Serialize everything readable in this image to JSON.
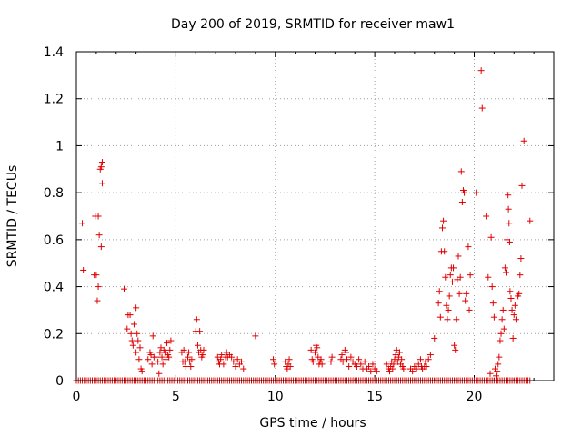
{
  "chart_data": {
    "type": "scatter",
    "title": "Day 200 of 2019, SRMTID for receiver maw1",
    "xlabel": "GPS time / hours",
    "ylabel": "SRMTID / TECUs",
    "xlim": [
      0,
      24
    ],
    "ylim": [
      0,
      1.4
    ],
    "grid": true,
    "marker": "+",
    "color": "#e00000",
    "xticks": [
      0,
      5,
      10,
      15,
      20
    ],
    "xtick_labels": [
      "0",
      "5",
      "10",
      "15",
      "20"
    ],
    "yticks": [
      0,
      0.2,
      0.4,
      0.6,
      0.8,
      1.0,
      1.2,
      1.4
    ],
    "ytick_labels": [
      "0",
      "0.2",
      "0.4",
      "0.6",
      "0.8",
      "1",
      "1.2",
      "1.4"
    ],
    "baseline_x": [
      0.0,
      0.1,
      0.2,
      0.3,
      0.4,
      0.5,
      0.6,
      0.7,
      0.8,
      0.9,
      1.0,
      1.1,
      1.2,
      1.3,
      1.4,
      1.5,
      1.6,
      1.7,
      1.8,
      1.9,
      2.0,
      2.1,
      2.2,
      2.3,
      2.4,
      2.5,
      2.6,
      2.7,
      2.8,
      2.9,
      3.0,
      3.1,
      3.2,
      3.3,
      3.4,
      3.5,
      3.6,
      3.7,
      3.8,
      3.9,
      4.0,
      4.1,
      4.2,
      4.3,
      4.4,
      4.5,
      4.6,
      4.7,
      4.8,
      4.9,
      5.0,
      5.1,
      5.2,
      5.3,
      5.4,
      5.5,
      5.6,
      5.7,
      5.8,
      5.9,
      6.0,
      6.1,
      6.2,
      6.3,
      6.4,
      6.5,
      6.6,
      6.7,
      6.8,
      6.9,
      7.0,
      7.1,
      7.2,
      7.3,
      7.4,
      7.5,
      7.6,
      7.7,
      7.8,
      7.9,
      8.0,
      8.1,
      8.2,
      8.3,
      8.4,
      8.5,
      8.6,
      8.7,
      8.8,
      8.9,
      9.0,
      9.1,
      9.2,
      9.3,
      9.4,
      9.5,
      9.6,
      9.7,
      9.8,
      9.9,
      10.0,
      10.1,
      10.2,
      10.3,
      10.4,
      10.5,
      10.6,
      10.7,
      10.8,
      10.9,
      11.0,
      11.1,
      11.2,
      11.3,
      11.4,
      11.5,
      11.6,
      11.7,
      11.8,
      11.9,
      12.0,
      12.1,
      12.2,
      12.3,
      12.4,
      12.5,
      12.6,
      12.7,
      12.8,
      12.9,
      13.0,
      13.1,
      13.2,
      13.3,
      13.4,
      13.5,
      13.6,
      13.7,
      13.8,
      13.9,
      14.0,
      14.1,
      14.2,
      14.3,
      14.4,
      14.5,
      14.6,
      14.7,
      14.8,
      14.9,
      15.0,
      15.1,
      15.2,
      15.3,
      15.4,
      15.5,
      15.6,
      15.7,
      15.8,
      15.9,
      16.0,
      16.1,
      16.2,
      16.3,
      16.4,
      16.5,
      16.6,
      16.7,
      16.8,
      16.9,
      17.0,
      17.1,
      17.2,
      17.3,
      17.4,
      17.5,
      17.6,
      17.7,
      17.8,
      17.9,
      18.0,
      18.1,
      18.2,
      18.3,
      18.4,
      18.5,
      18.6,
      18.7,
      18.8,
      18.9,
      19.0,
      19.1,
      19.2,
      19.3,
      19.4,
      19.5,
      19.6,
      19.7,
      19.8,
      19.9,
      20.0,
      20.1,
      20.2,
      20.3,
      20.4,
      20.5,
      20.6,
      20.7,
      20.8,
      20.9,
      21.0,
      21.1,
      21.2,
      21.3,
      21.4,
      21.5,
      21.6,
      21.7,
      21.8,
      21.9,
      22.0,
      22.1,
      22.2,
      22.3,
      22.4,
      22.5,
      22.6,
      22.7,
      22.8
    ],
    "points": [
      [
        0.3,
        0.67
      ],
      [
        0.35,
        0.47
      ],
      [
        0.9,
        0.45
      ],
      [
        1.0,
        0.45
      ],
      [
        0.95,
        0.7
      ],
      [
        1.1,
        0.7
      ],
      [
        1.05,
        0.34
      ],
      [
        1.1,
        0.4
      ],
      [
        1.15,
        0.62
      ],
      [
        1.2,
        0.9
      ],
      [
        1.25,
        0.91
      ],
      [
        1.25,
        0.57
      ],
      [
        1.3,
        0.93
      ],
      [
        1.3,
        0.84
      ],
      [
        2.4,
        0.39
      ],
      [
        2.55,
        0.22
      ],
      [
        2.6,
        0.28
      ],
      [
        2.7,
        0.28
      ],
      [
        2.75,
        0.2
      ],
      [
        2.8,
        0.17
      ],
      [
        2.85,
        0.15
      ],
      [
        2.9,
        0.24
      ],
      [
        3.0,
        0.31
      ],
      [
        3.0,
        0.12
      ],
      [
        3.05,
        0.2
      ],
      [
        3.1,
        0.17
      ],
      [
        3.15,
        0.09
      ],
      [
        3.2,
        0.14
      ],
      [
        3.25,
        0.05
      ],
      [
        3.3,
        0.04
      ],
      [
        3.6,
        0.09
      ],
      [
        3.7,
        0.12
      ],
      [
        3.75,
        0.11
      ],
      [
        3.8,
        0.07
      ],
      [
        3.85,
        0.19
      ],
      [
        3.9,
        0.1
      ],
      [
        4.0,
        0.1
      ],
      [
        4.1,
        0.08
      ],
      [
        4.15,
        0.03
      ],
      [
        4.2,
        0.12
      ],
      [
        4.25,
        0.14
      ],
      [
        4.3,
        0.1
      ],
      [
        4.35,
        0.07
      ],
      [
        4.4,
        0.13
      ],
      [
        4.45,
        0.12
      ],
      [
        4.5,
        0.09
      ],
      [
        4.55,
        0.16
      ],
      [
        4.6,
        0.11
      ],
      [
        4.65,
        0.1
      ],
      [
        4.7,
        0.13
      ],
      [
        4.75,
        0.17
      ],
      [
        5.3,
        0.12
      ],
      [
        5.35,
        0.08
      ],
      [
        5.4,
        0.13
      ],
      [
        5.45,
        0.08
      ],
      [
        5.5,
        0.06
      ],
      [
        5.6,
        0.1
      ],
      [
        5.65,
        0.12
      ],
      [
        5.7,
        0.08
      ],
      [
        5.75,
        0.06
      ],
      [
        5.8,
        0.09
      ],
      [
        6.0,
        0.21
      ],
      [
        6.05,
        0.26
      ],
      [
        6.1,
        0.15
      ],
      [
        6.15,
        0.12
      ],
      [
        6.2,
        0.21
      ],
      [
        6.25,
        0.13
      ],
      [
        6.3,
        0.1
      ],
      [
        6.35,
        0.11
      ],
      [
        6.4,
        0.13
      ],
      [
        7.1,
        0.1
      ],
      [
        7.15,
        0.08
      ],
      [
        7.2,
        0.07
      ],
      [
        7.25,
        0.09
      ],
      [
        7.3,
        0.11
      ],
      [
        7.4,
        0.07
      ],
      [
        7.5,
        0.1
      ],
      [
        7.55,
        0.12
      ],
      [
        7.6,
        0.1
      ],
      [
        7.7,
        0.11
      ],
      [
        7.8,
        0.1
      ],
      [
        7.9,
        0.08
      ],
      [
        8.0,
        0.06
      ],
      [
        8.1,
        0.09
      ],
      [
        8.2,
        0.07
      ],
      [
        8.3,
        0.08
      ],
      [
        8.4,
        0.05
      ],
      [
        9.0,
        0.19
      ],
      [
        9.9,
        0.09
      ],
      [
        9.95,
        0.07
      ],
      [
        10.5,
        0.08
      ],
      [
        10.55,
        0.06
      ],
      [
        10.6,
        0.05
      ],
      [
        10.65,
        0.07
      ],
      [
        10.7,
        0.09
      ],
      [
        10.75,
        0.06
      ],
      [
        11.8,
        0.13
      ],
      [
        11.85,
        0.09
      ],
      [
        11.9,
        0.08
      ],
      [
        12.0,
        0.12
      ],
      [
        12.05,
        0.15
      ],
      [
        12.1,
        0.14
      ],
      [
        12.15,
        0.1
      ],
      [
        12.2,
        0.07
      ],
      [
        12.25,
        0.08
      ],
      [
        12.3,
        0.09
      ],
      [
        12.35,
        0.07
      ],
      [
        12.8,
        0.08
      ],
      [
        12.85,
        0.1
      ],
      [
        13.3,
        0.09
      ],
      [
        13.35,
        0.11
      ],
      [
        13.4,
        0.08
      ],
      [
        13.5,
        0.13
      ],
      [
        13.55,
        0.12
      ],
      [
        13.6,
        0.09
      ],
      [
        13.7,
        0.06
      ],
      [
        13.8,
        0.1
      ],
      [
        13.9,
        0.08
      ],
      [
        14.0,
        0.07
      ],
      [
        14.1,
        0.06
      ],
      [
        14.2,
        0.09
      ],
      [
        14.3,
        0.07
      ],
      [
        14.4,
        0.05
      ],
      [
        14.5,
        0.08
      ],
      [
        14.6,
        0.05
      ],
      [
        14.7,
        0.06
      ],
      [
        14.8,
        0.04
      ],
      [
        14.9,
        0.07
      ],
      [
        15.0,
        0.05
      ],
      [
        15.1,
        0.04
      ],
      [
        15.6,
        0.07
      ],
      [
        15.7,
        0.05
      ],
      [
        15.75,
        0.04
      ],
      [
        15.8,
        0.06
      ],
      [
        15.85,
        0.08
      ],
      [
        15.9,
        0.05
      ],
      [
        15.95,
        0.07
      ],
      [
        16.0,
        0.09
      ],
      [
        16.05,
        0.11
      ],
      [
        16.1,
        0.13
      ],
      [
        16.15,
        0.08
      ],
      [
        16.2,
        0.1
      ],
      [
        16.25,
        0.12
      ],
      [
        16.3,
        0.07
      ],
      [
        16.35,
        0.09
      ],
      [
        16.4,
        0.06
      ],
      [
        16.45,
        0.05
      ],
      [
        16.8,
        0.05
      ],
      [
        16.9,
        0.04
      ],
      [
        17.0,
        0.06
      ],
      [
        17.1,
        0.05
      ],
      [
        17.2,
        0.07
      ],
      [
        17.3,
        0.09
      ],
      [
        17.35,
        0.06
      ],
      [
        17.4,
        0.05
      ],
      [
        17.5,
        0.06
      ],
      [
        17.55,
        0.08
      ],
      [
        17.6,
        0.06
      ],
      [
        17.7,
        0.09
      ],
      [
        17.8,
        0.11
      ],
      [
        18.0,
        0.18
      ],
      [
        18.2,
        0.33
      ],
      [
        18.25,
        0.38
      ],
      [
        18.3,
        0.27
      ],
      [
        18.35,
        0.55
      ],
      [
        18.4,
        0.65
      ],
      [
        18.45,
        0.68
      ],
      [
        18.5,
        0.55
      ],
      [
        18.55,
        0.44
      ],
      [
        18.6,
        0.32
      ],
      [
        18.65,
        0.26
      ],
      [
        18.7,
        0.3
      ],
      [
        18.75,
        0.36
      ],
      [
        18.8,
        0.45
      ],
      [
        18.85,
        0.48
      ],
      [
        18.9,
        0.42
      ],
      [
        18.95,
        0.48
      ],
      [
        19.0,
        0.15
      ],
      [
        19.05,
        0.13
      ],
      [
        19.1,
        0.26
      ],
      [
        19.15,
        0.43
      ],
      [
        19.2,
        0.53
      ],
      [
        19.25,
        0.37
      ],
      [
        19.3,
        0.44
      ],
      [
        19.35,
        0.89
      ],
      [
        19.4,
        0.76
      ],
      [
        19.45,
        0.81
      ],
      [
        19.5,
        0.8
      ],
      [
        19.55,
        0.34
      ],
      [
        19.6,
        0.37
      ],
      [
        19.7,
        0.57
      ],
      [
        19.75,
        0.3
      ],
      [
        19.8,
        0.45
      ],
      [
        20.1,
        0.8
      ],
      [
        20.35,
        1.32
      ],
      [
        20.4,
        1.16
      ],
      [
        20.6,
        0.7
      ],
      [
        20.7,
        0.44
      ],
      [
        20.8,
        0.03
      ],
      [
        20.85,
        0.61
      ],
      [
        20.9,
        0.4
      ],
      [
        20.95,
        0.33
      ],
      [
        21.0,
        0.27
      ],
      [
        21.05,
        0.05
      ],
      [
        21.1,
        0.02
      ],
      [
        21.15,
        0.04
      ],
      [
        21.2,
        0.07
      ],
      [
        21.25,
        0.1
      ],
      [
        21.3,
        0.17
      ],
      [
        21.35,
        0.2
      ],
      [
        21.4,
        0.26
      ],
      [
        21.45,
        0.3
      ],
      [
        21.5,
        0.22
      ],
      [
        21.55,
        0.48
      ],
      [
        21.6,
        0.46
      ],
      [
        21.65,
        0.6
      ],
      [
        21.7,
        0.79
      ],
      [
        21.72,
        0.73
      ],
      [
        21.75,
        0.67
      ],
      [
        21.78,
        0.59
      ],
      [
        21.8,
        0.38
      ],
      [
        21.85,
        0.35
      ],
      [
        21.9,
        0.3
      ],
      [
        21.95,
        0.18
      ],
      [
        22.0,
        0.28
      ],
      [
        22.05,
        0.32
      ],
      [
        22.1,
        0.26
      ],
      [
        22.2,
        0.36
      ],
      [
        22.25,
        0.37
      ],
      [
        22.3,
        0.45
      ],
      [
        22.35,
        0.52
      ],
      [
        22.4,
        0.83
      ],
      [
        22.5,
        1.02
      ],
      [
        22.8,
        0.68
      ]
    ]
  }
}
